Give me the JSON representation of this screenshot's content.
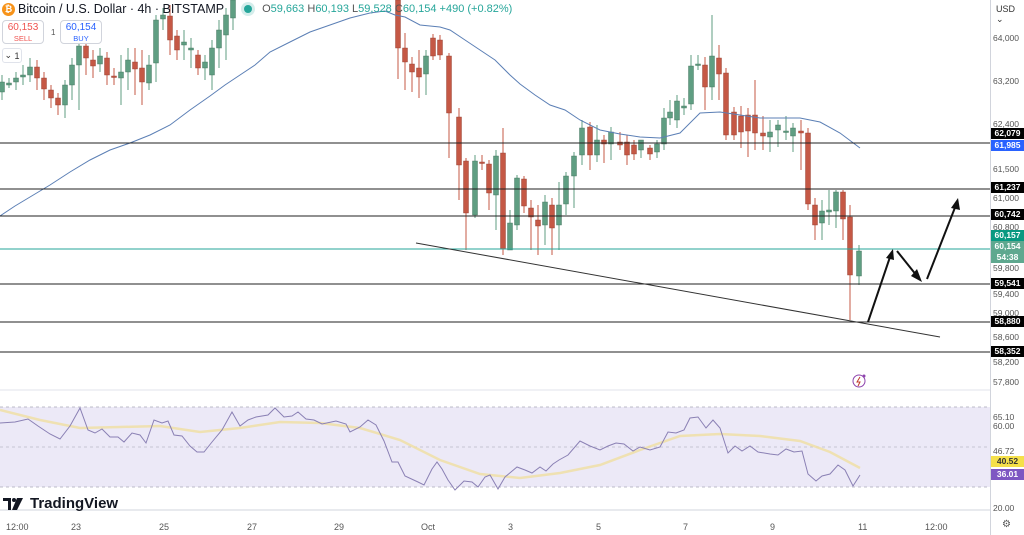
{
  "header": {
    "symbol_icon": "bitcoin-icon",
    "title": "Bitcoin / U.S. Dollar · 4h · BITSTAMP",
    "market_status": "live-dot-icon",
    "ohlc": {
      "open_label": "O",
      "open": "59,663",
      "high_label": "H",
      "high": "60,193",
      "low_label": "L",
      "low": "59,528",
      "close_label": "C",
      "close": "60,154",
      "change": "+490 (+0.82%)"
    }
  },
  "trade": {
    "sell_price": "60,153",
    "sell_label": "SELL",
    "spread": "1",
    "buy_price": "60,154",
    "buy_label": "BUY"
  },
  "indicators_toggle": {
    "icon": "chevron-down-icon",
    "count": "1"
  },
  "price_axis": {
    "currency": "USD",
    "ticks": [
      "64,000",
      "63,200",
      "62,400",
      "61,500",
      "61,000",
      "60,800",
      "59,800",
      "59,400",
      "59,000",
      "58,600",
      "58,200",
      "57,800"
    ],
    "tags": [
      {
        "label": "62,079",
        "color": "#000000"
      },
      {
        "label": "61,985",
        "color": "#2962ff"
      },
      {
        "label": "61,237",
        "color": "#000000"
      },
      {
        "label": "60,742",
        "color": "#000000"
      },
      {
        "label": "60,157",
        "color": "#089981"
      },
      {
        "label": "60,154",
        "color": "#5fa88f"
      },
      {
        "label": "54:38",
        "color": "#5fa88f"
      },
      {
        "label": "59,541",
        "color": "#000000"
      },
      {
        "label": "58,880",
        "color": "#000000"
      },
      {
        "label": "58,352",
        "color": "#000000"
      }
    ]
  },
  "rsi_axis": {
    "ticks": [
      "65.10",
      "60.00",
      "46.72",
      "20.00"
    ],
    "rsi_value": "36.01",
    "rsi_ma_value": "40.52"
  },
  "time_axis": {
    "ticks": [
      "12:00",
      "23",
      "25",
      "27",
      "29",
      "Oct",
      "3",
      "5",
      "7",
      "9",
      "11",
      "12:00"
    ]
  },
  "branding": {
    "logo": "TradingView"
  },
  "colors": {
    "up": "#5f9e82",
    "down": "#c55845",
    "ma": "#5b7fb5",
    "rsi": "#7e57c2",
    "rsi_ma": "#f5e6a8",
    "rsi_band": "#ece9f7"
  },
  "chart_data": {
    "type": "candlestick",
    "title": "Bitcoin / U.S. Dollar · 4h · BITSTAMP",
    "xlabel": "",
    "ylabel": "USD",
    "ylim": [
      57600,
      64400
    ],
    "x_ticks": [
      "12:00",
      "23",
      "25",
      "27",
      "29",
      "Oct",
      "3",
      "5",
      "7",
      "9",
      "11",
      "12:00"
    ],
    "last": {
      "open": 59663,
      "high": 60193,
      "low": 59528,
      "close": 60154,
      "change": 490,
      "change_pct": 0.82
    },
    "horizontal_levels": [
      62079,
      61237,
      60742,
      60157,
      59541,
      58880,
      58352
    ],
    "moving_average_last": 61985,
    "trendline": {
      "from_date": "Oct 1",
      "from_price": 60420,
      "to_date": "Oct 11",
      "to_price": 58600
    },
    "projection_arrows": [
      {
        "from": 58880,
        "to": 60157
      },
      {
        "from": 60157,
        "to": 59541
      },
      {
        "from": 59541,
        "to": 61237
      }
    ],
    "rsi": {
      "upper_band": 65.1,
      "lower_band": 20.0,
      "mid": 46.72,
      "current": 36.01,
      "ma": 40.52
    }
  }
}
